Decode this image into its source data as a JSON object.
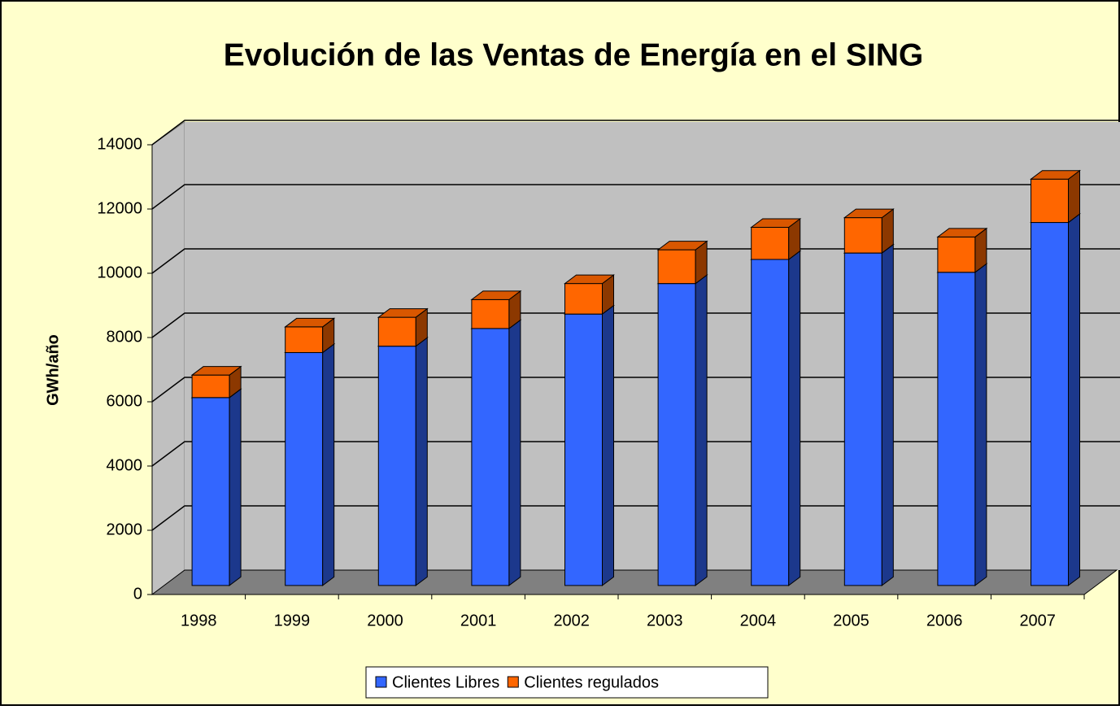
{
  "chart_data": {
    "type": "bar3d_stacked",
    "title": "Evolución de las Ventas de Energía en el SING",
    "y_label": "GWh/año",
    "categories": [
      "1998",
      "1999",
      "2000",
      "2001",
      "2002",
      "2003",
      "2004",
      "2005",
      "2006",
      "2007"
    ],
    "series": [
      {
        "name": "Clientes Libres",
        "color": "#3366ff",
        "values": [
          5850,
          7250,
          7450,
          8000,
          8450,
          9400,
          10150,
          10350,
          9750,
          11300
        ]
      },
      {
        "name": "Clientes regulados",
        "color": "#ff6600",
        "values": [
          700,
          800,
          900,
          900,
          950,
          1050,
          1000,
          1100,
          1100,
          1350
        ]
      }
    ],
    "ylim": [
      0,
      14000
    ],
    "yticks": [
      0,
      2000,
      4000,
      6000,
      8000,
      10000,
      12000,
      14000
    ],
    "grid": true,
    "legend": "bottom"
  }
}
